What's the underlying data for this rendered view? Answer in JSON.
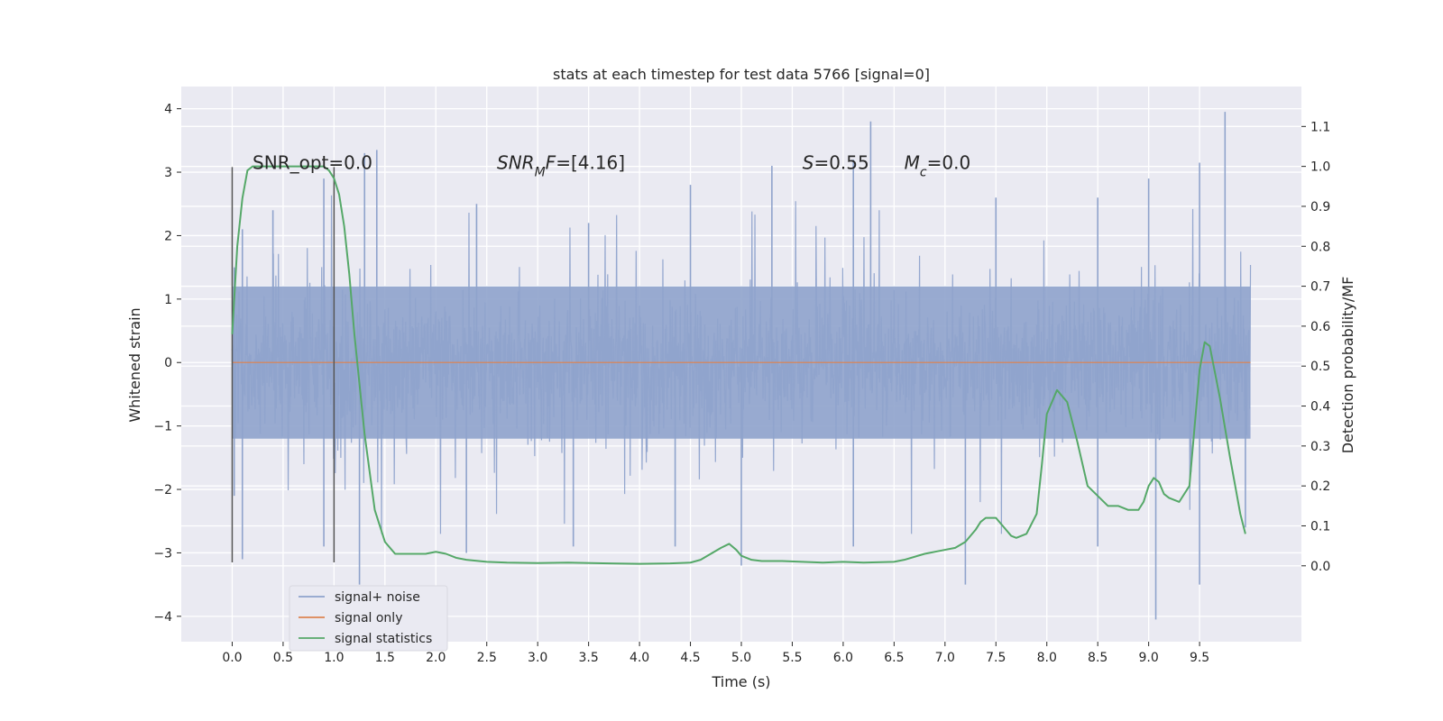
{
  "chart_data": {
    "type": "line",
    "title": "stats at each timestep for test data 5766 [signal=0]",
    "xlabel": "Time (s)",
    "ylabel": "Whitened strain",
    "y2label": "Detection probability/MF",
    "xlim": [
      -0.5,
      10.5
    ],
    "ylim": [
      -4.4,
      4.35
    ],
    "y2lim": [
      -0.19,
      1.2
    ],
    "xticks": [
      0.0,
      0.5,
      1.0,
      1.5,
      2.0,
      2.5,
      3.0,
      3.5,
      4.0,
      4.5,
      5.0,
      5.5,
      6.0,
      6.5,
      7.0,
      7.5,
      8.0,
      8.5,
      9.0,
      9.5
    ],
    "xtick_labels": [
      "0.0",
      "0.5",
      "1.0",
      "1.5",
      "2.0",
      "2.5",
      "3.0",
      "3.5",
      "4.0",
      "4.5",
      "5.0",
      "5.5",
      "6.0",
      "6.5",
      "7.0",
      "7.5",
      "8.0",
      "8.5",
      "9.0",
      "9.5"
    ],
    "yticks": [
      -4,
      -3,
      -2,
      -1,
      0,
      1,
      2,
      3,
      4
    ],
    "ytick_labels": [
      "−4",
      "−3",
      "−2",
      "−1",
      "0",
      "1",
      "2",
      "3",
      "4"
    ],
    "y2ticks": [
      0.0,
      0.1,
      0.2,
      0.3,
      0.4,
      0.5,
      0.6,
      0.7,
      0.8,
      0.9,
      1.0,
      1.1
    ],
    "y2tick_labels": [
      "0.0",
      "0.1",
      "0.2",
      "0.3",
      "0.4",
      "0.5",
      "0.6",
      "0.7",
      "0.8",
      "0.9",
      "1.0",
      "1.1"
    ],
    "grid": true,
    "legend_position": "lower-left",
    "colors": {
      "noise": "#8fa3cc",
      "signal": "#dd8452",
      "stats": "#55a868",
      "vline": "#555555"
    },
    "series": [
      {
        "name": "signal+ noise",
        "axis": "left",
        "noise_band": [
          -1.2,
          1.2
        ],
        "peaks_x": [
          0.02,
          0.1,
          0.4,
          0.9,
          1.3,
          1.42,
          2.4,
          3.5,
          4.5,
          5.3,
          6.1,
          6.27,
          7.5,
          8.5,
          9.0,
          9.5,
          9.75
        ],
        "peaks_y": [
          1.5,
          2.1,
          2.4,
          2.9,
          3.3,
          3.35,
          2.5,
          2.2,
          2.8,
          3.1,
          3.2,
          3.8,
          2.6,
          2.6,
          2.9,
          3.15,
          3.95
        ],
        "troughs_x": [
          0.02,
          0.1,
          0.9,
          1.25,
          2.3,
          3.35,
          4.35,
          5.0,
          6.1,
          7.2,
          8.5,
          9.07,
          9.5,
          9.95
        ],
        "troughs_y": [
          -2.1,
          -3.1,
          -2.9,
          -3.5,
          -3.0,
          -2.9,
          -2.9,
          -3.2,
          -2.9,
          -3.5,
          -2.9,
          -4.05,
          -3.5,
          -2.6
        ]
      },
      {
        "name": "signal only",
        "axis": "left",
        "x": [
          0.0,
          10.0
        ],
        "values": [
          0.0,
          0.0
        ]
      },
      {
        "name": "signal statistics",
        "axis": "right",
        "x": [
          0.0,
          0.05,
          0.1,
          0.15,
          0.2,
          0.3,
          0.4,
          0.5,
          0.6,
          0.7,
          0.8,
          0.9,
          0.95,
          1.0,
          1.05,
          1.1,
          1.15,
          1.2,
          1.3,
          1.4,
          1.5,
          1.6,
          1.7,
          1.8,
          1.9,
          2.0,
          2.1,
          2.2,
          2.3,
          2.5,
          2.7,
          3.0,
          3.3,
          3.7,
          4.0,
          4.3,
          4.5,
          4.6,
          4.7,
          4.8,
          4.88,
          4.95,
          5.0,
          5.1,
          5.2,
          5.4,
          5.6,
          5.8,
          6.0,
          6.2,
          6.5,
          6.6,
          6.8,
          7.0,
          7.1,
          7.2,
          7.3,
          7.35,
          7.4,
          7.5,
          7.6,
          7.65,
          7.7,
          7.8,
          7.9,
          7.95,
          8.0,
          8.1,
          8.2,
          8.3,
          8.4,
          8.6,
          8.7,
          8.8,
          8.9,
          8.95,
          9.0,
          9.05,
          9.1,
          9.15,
          9.2,
          9.3,
          9.4,
          9.5,
          9.55,
          9.6,
          9.7,
          9.8,
          9.9,
          9.95
        ],
        "values": [
          0.58,
          0.8,
          0.92,
          0.99,
          1.0,
          1.0,
          1.0,
          1.0,
          1.0,
          1.0,
          1.0,
          1.0,
          0.99,
          0.97,
          0.93,
          0.85,
          0.73,
          0.58,
          0.33,
          0.14,
          0.06,
          0.03,
          0.03,
          0.03,
          0.03,
          0.035,
          0.03,
          0.02,
          0.015,
          0.01,
          0.008,
          0.007,
          0.008,
          0.006,
          0.005,
          0.006,
          0.008,
          0.015,
          0.03,
          0.045,
          0.055,
          0.04,
          0.025,
          0.015,
          0.012,
          0.012,
          0.01,
          0.008,
          0.01,
          0.008,
          0.01,
          0.015,
          0.03,
          0.04,
          0.045,
          0.06,
          0.09,
          0.11,
          0.12,
          0.12,
          0.09,
          0.075,
          0.07,
          0.08,
          0.13,
          0.25,
          0.38,
          0.44,
          0.41,
          0.31,
          0.2,
          0.15,
          0.15,
          0.14,
          0.14,
          0.16,
          0.2,
          0.22,
          0.21,
          0.18,
          0.17,
          0.16,
          0.2,
          0.49,
          0.56,
          0.55,
          0.42,
          0.27,
          0.13,
          0.08
        ]
      }
    ],
    "vlines": [
      {
        "x": 0.0,
        "y_from": -3.15,
        "y_to": 3.08
      },
      {
        "x": 1.0,
        "y_from": -3.15,
        "y_to": 3.08
      }
    ],
    "annotations": [
      {
        "x": 0.2,
        "y": 3.05,
        "parts": [
          {
            "t": "SNR_opt=0.0"
          }
        ]
      },
      {
        "x": 2.6,
        "y": 3.05,
        "parts": [
          {
            "t": "SNR",
            "style": "italic"
          },
          {
            "t": "M",
            "style": "italic-sub"
          },
          {
            "t": "F",
            "style": "italic"
          },
          {
            "t": "=[4.16]"
          }
        ]
      },
      {
        "x": 5.6,
        "y": 3.05,
        "parts": [
          {
            "t": "S",
            "style": "italic"
          },
          {
            "t": "=0.55"
          }
        ]
      },
      {
        "x": 6.6,
        "y": 3.05,
        "parts": [
          {
            "t": "M",
            "style": "italic"
          },
          {
            "t": "c",
            "style": "italic-sub"
          },
          {
            "t": "=0.0"
          }
        ]
      }
    ]
  }
}
